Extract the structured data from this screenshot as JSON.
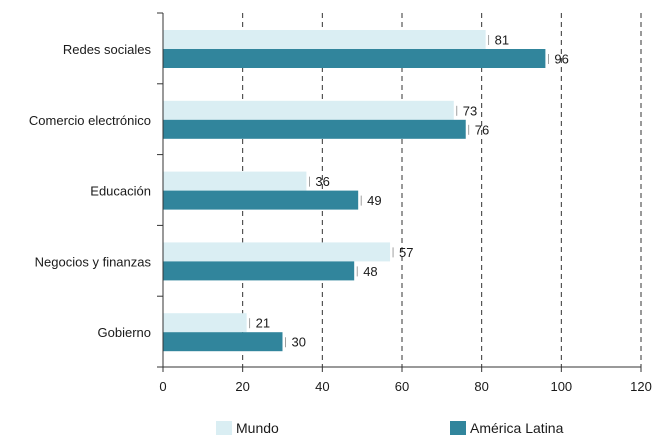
{
  "chart_data": {
    "type": "bar",
    "orientation": "horizontal",
    "categories": [
      "Redes sociales",
      "Comercio electrónico",
      "Educación",
      "Negocios y finanzas",
      "Gobierno"
    ],
    "series": [
      {
        "name": "Mundo",
        "values": [
          81,
          73,
          36,
          57,
          21
        ],
        "color": "#daeef3"
      },
      {
        "name": "América Latina",
        "values": [
          96,
          76,
          49,
          48,
          30
        ],
        "color": "#31859c"
      }
    ],
    "xlim": [
      0,
      120
    ],
    "xticks": [
      0,
      20,
      40,
      60,
      80,
      100,
      120
    ],
    "grid": "vertical dashed",
    "legend_position": "bottom"
  }
}
